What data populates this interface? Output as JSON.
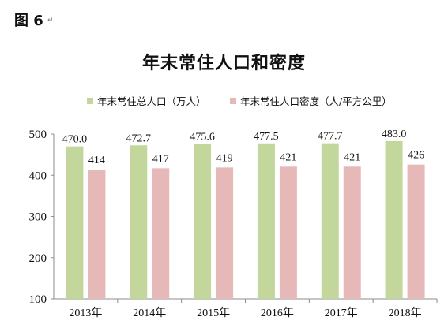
{
  "figure_label": "图 6",
  "paragraph_mark": "↵",
  "chart_data": {
    "type": "bar",
    "title": "年末常住人口和密度",
    "xlabel": "",
    "ylabel": "",
    "ylim": [
      100,
      500
    ],
    "yticks": [
      "100",
      "200",
      "300",
      "400",
      "500"
    ],
    "grid": false,
    "legend_position": "top",
    "categories": [
      "2013年",
      "2014年",
      "2015年",
      "2016年",
      "2017年",
      "2018年"
    ],
    "series": [
      {
        "name": "年末常住总人口（万人）",
        "color": "#c3d69b",
        "values": [
          470.0,
          472.7,
          475.6,
          477.5,
          477.7,
          483.0
        ],
        "labels": [
          "470.0",
          "472.7",
          "475.6",
          "477.5",
          "477.7",
          "483.0"
        ]
      },
      {
        "name": "年末常住人口密度（人/平方公里）",
        "color": "#e6b9b8",
        "values": [
          414,
          417,
          419,
          421,
          421,
          426
        ],
        "labels": [
          "414",
          "417",
          "419",
          "421",
          "421",
          "426"
        ]
      }
    ]
  }
}
